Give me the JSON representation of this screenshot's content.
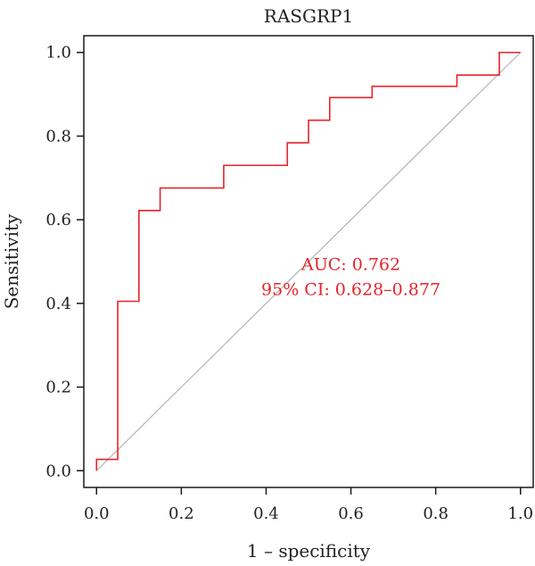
{
  "chart_data": {
    "type": "line",
    "title": "RASGRP1",
    "xlabel": "1 – specificity",
    "ylabel": "Sensitivity",
    "xlim": [
      -0.03,
      1.03
    ],
    "ylim": [
      -0.04,
      1.04
    ],
    "xticks": [
      "0.0",
      "0.2",
      "0.4",
      "0.6",
      "0.8",
      "1.0"
    ],
    "yticks": [
      "0.0",
      "0.2",
      "0.4",
      "0.6",
      "0.8",
      "1.0"
    ],
    "grid": false,
    "series": [
      {
        "color": "#e8232a",
        "points": [
          [
            0.0,
            0.0
          ],
          [
            0.0,
            0.027
          ],
          [
            0.05,
            0.027
          ],
          [
            0.05,
            0.405
          ],
          [
            0.1,
            0.405
          ],
          [
            0.1,
            0.622
          ],
          [
            0.15,
            0.622
          ],
          [
            0.15,
            0.676
          ],
          [
            0.3,
            0.676
          ],
          [
            0.3,
            0.73
          ],
          [
            0.45,
            0.73
          ],
          [
            0.45,
            0.784
          ],
          [
            0.5,
            0.784
          ],
          [
            0.5,
            0.838
          ],
          [
            0.55,
            0.838
          ],
          [
            0.55,
            0.892
          ],
          [
            0.65,
            0.892
          ],
          [
            0.65,
            0.919
          ],
          [
            0.85,
            0.919
          ],
          [
            0.85,
            0.946
          ],
          [
            0.95,
            0.946
          ],
          [
            0.95,
            1.0
          ],
          [
            1.0,
            1.0
          ]
        ]
      }
    ],
    "reference_line": {
      "color": "#b3b3b3",
      "points": [
        [
          0,
          0
        ],
        [
          1,
          1
        ]
      ]
    },
    "annotations": [
      {
        "text": "AUC: 0.762",
        "x": 0.6,
        "y": 0.48,
        "color": "#e8232a"
      },
      {
        "text": "95% CI: 0.628–0.877",
        "x": 0.6,
        "y": 0.42,
        "color": "#e8232a"
      }
    ]
  }
}
